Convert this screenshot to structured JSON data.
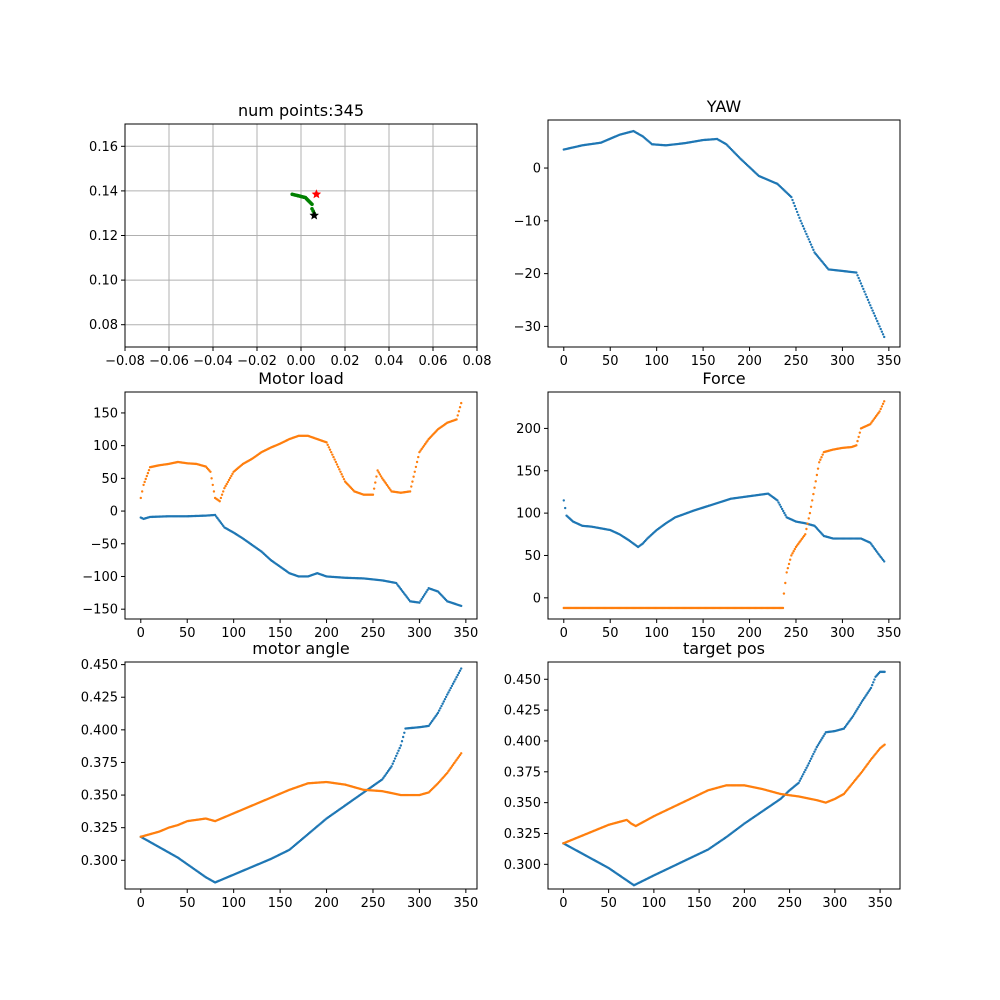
{
  "figure": {
    "description": "Six-panel matplotlib figure of robot motion telemetry"
  },
  "colors": {
    "series_0": "#1f77b4",
    "series_1": "#ff7f0e",
    "path": "#008000",
    "start_marker": "#ff0000",
    "end_marker": "#000000"
  },
  "chart_data": [
    {
      "id": "trajectory",
      "type": "scatter",
      "title": "num points:345",
      "xlim": [
        -0.08,
        0.08
      ],
      "ylim": [
        0.07,
        0.17
      ],
      "xticks": [
        "−0.08",
        "−0.06",
        "−0.04",
        "−0.02",
        "0.00",
        "0.02",
        "0.04",
        "0.06",
        "0.08"
      ],
      "xtick_values": [
        -0.08,
        -0.06,
        -0.04,
        -0.02,
        0.0,
        0.02,
        0.04,
        0.06,
        0.08
      ],
      "yticks": [
        "0.08",
        "0.10",
        "0.12",
        "0.14",
        "0.16"
      ],
      "ytick_values": [
        0.08,
        0.1,
        0.12,
        0.14,
        0.16
      ],
      "grid": true,
      "path": {
        "name": "trajectory",
        "x": [
          -0.004,
          -0.002,
          0.0,
          0.002,
          0.003,
          0.004,
          0.005,
          0.005,
          0.006
        ],
        "y": [
          0.1385,
          0.138,
          0.1375,
          0.137,
          0.136,
          0.135,
          0.134,
          0.132,
          0.13
        ]
      },
      "start_marker": {
        "x": 0.007,
        "y": 0.1385
      },
      "end_marker": {
        "x": 0.006,
        "y": 0.129
      }
    },
    {
      "id": "yaw",
      "type": "scatter",
      "title": "YAW",
      "xlim": [
        -17,
        362
      ],
      "ylim": [
        -33.9,
        9.1
      ],
      "xticks": [
        "0",
        "50",
        "100",
        "150",
        "200",
        "250",
        "300",
        "350"
      ],
      "xtick_values": [
        0,
        50,
        100,
        150,
        200,
        250,
        300,
        350
      ],
      "yticks": [
        "−30",
        "−20",
        "−10",
        "0"
      ],
      "ytick_values": [
        -30,
        -20,
        -10,
        0
      ],
      "series": [
        {
          "name": "yaw",
          "x": [
            0,
            20,
            40,
            60,
            75,
            85,
            95,
            110,
            130,
            150,
            165,
            175,
            190,
            210,
            230,
            245,
            255,
            270,
            285,
            300,
            315,
            330,
            345
          ],
          "y": [
            3.5,
            4.3,
            4.8,
            6.3,
            7.0,
            6.0,
            4.5,
            4.3,
            4.7,
            5.3,
            5.5,
            4.5,
            1.8,
            -1.5,
            -3.0,
            -5.5,
            -10.0,
            -16.0,
            -19.2,
            -19.5,
            -19.8,
            -26.0,
            -32.0
          ]
        }
      ]
    },
    {
      "id": "motor_load",
      "type": "scatter",
      "title": "Motor load",
      "xlim": [
        -17,
        362
      ],
      "ylim": [
        -165,
        182
      ],
      "xticks": [
        "0",
        "50",
        "100",
        "150",
        "200",
        "250",
        "300",
        "350"
      ],
      "xtick_values": [
        0,
        50,
        100,
        150,
        200,
        250,
        300,
        350
      ],
      "yticks": [
        "−150",
        "−100",
        "−50",
        "0",
        "50",
        "100",
        "150"
      ],
      "ytick_values": [
        -150,
        -100,
        -50,
        0,
        50,
        100,
        150
      ],
      "series": [
        {
          "name": "load_0",
          "x": [
            0,
            3,
            10,
            30,
            50,
            70,
            80,
            90,
            100,
            110,
            120,
            130,
            140,
            150,
            160,
            170,
            180,
            190,
            200,
            220,
            240,
            260,
            275,
            290,
            300,
            310,
            320,
            330,
            345
          ],
          "y": [
            -10,
            -12,
            -9,
            -8,
            -8,
            -7,
            -6,
            -25,
            -33,
            -42,
            -52,
            -62,
            -75,
            -85,
            -95,
            -100,
            -100,
            -95,
            -100,
            -102,
            -103,
            -106,
            -110,
            -138,
            -140,
            -118,
            -123,
            -138,
            -145
          ]
        },
        {
          "name": "load_1",
          "x": [
            0,
            3,
            10,
            20,
            30,
            40,
            50,
            60,
            70,
            75,
            80,
            85,
            90,
            100,
            110,
            120,
            130,
            140,
            150,
            160,
            170,
            180,
            190,
            200,
            210,
            220,
            230,
            240,
            250,
            255,
            260,
            270,
            280,
            290,
            295,
            300,
            310,
            320,
            330,
            340,
            345
          ],
          "y": [
            20,
            40,
            67,
            70,
            72,
            75,
            73,
            72,
            68,
            60,
            20,
            15,
            35,
            60,
            72,
            80,
            90,
            97,
            103,
            110,
            115,
            115,
            110,
            105,
            75,
            45,
            30,
            25,
            25,
            62,
            50,
            30,
            28,
            30,
            60,
            90,
            110,
            125,
            135,
            140,
            165
          ]
        }
      ]
    },
    {
      "id": "force",
      "type": "scatter",
      "title": "Force",
      "xlim": [
        -17,
        362
      ],
      "ylim": [
        -25,
        243
      ],
      "xticks": [
        "0",
        "50",
        "100",
        "150",
        "200",
        "250",
        "300",
        "350"
      ],
      "xtick_values": [
        0,
        50,
        100,
        150,
        200,
        250,
        300,
        350
      ],
      "yticks": [
        "0",
        "50",
        "100",
        "150",
        "200"
      ],
      "ytick_values": [
        0,
        50,
        100,
        150,
        200
      ],
      "series": [
        {
          "name": "force_0",
          "x": [
            0,
            3,
            10,
            20,
            30,
            40,
            50,
            60,
            70,
            80,
            85,
            90,
            100,
            110,
            120,
            140,
            160,
            180,
            200,
            220,
            230,
            240,
            250,
            260,
            270,
            280,
            290,
            300,
            320,
            330,
            340,
            345
          ],
          "y": [
            115,
            97,
            90,
            85,
            84,
            82,
            80,
            75,
            68,
            60,
            64,
            70,
            80,
            88,
            95,
            103,
            110,
            117,
            120,
            123,
            115,
            95,
            90,
            88,
            85,
            73,
            70,
            70,
            70,
            65,
            50,
            43
          ]
        },
        {
          "name": "force_1",
          "x": [
            0,
            50,
            100,
            150,
            200,
            236,
            237,
            240,
            245,
            250,
            260,
            265,
            270,
            275,
            280,
            290,
            300,
            310,
            315,
            320,
            330,
            340,
            345
          ],
          "y": [
            -12,
            -12,
            -12,
            -12,
            -12,
            -12,
            5,
            30,
            50,
            60,
            75,
            100,
            130,
            160,
            172,
            175,
            177,
            178,
            180,
            200,
            205,
            220,
            232
          ]
        }
      ]
    },
    {
      "id": "motor_angle",
      "type": "scatter",
      "title": "motor angle",
      "xlim": [
        -17,
        362
      ],
      "ylim": [
        0.278,
        0.452
      ],
      "xticks": [
        "0",
        "50",
        "100",
        "150",
        "200",
        "250",
        "300",
        "350"
      ],
      "xtick_values": [
        0,
        50,
        100,
        150,
        200,
        250,
        300,
        350
      ],
      "yticks": [
        "0.300",
        "0.325",
        "0.350",
        "0.375",
        "0.400",
        "0.425",
        "0.450"
      ],
      "ytick_values": [
        0.3,
        0.325,
        0.35,
        0.375,
        0.4,
        0.425,
        0.45
      ],
      "series": [
        {
          "name": "angle_0",
          "x": [
            0,
            10,
            20,
            30,
            40,
            50,
            60,
            70,
            80,
            100,
            120,
            140,
            160,
            180,
            200,
            220,
            240,
            250,
            260,
            270,
            280,
            285,
            300,
            310,
            320,
            330,
            345
          ],
          "y": [
            0.318,
            0.314,
            0.31,
            0.306,
            0.302,
            0.297,
            0.292,
            0.287,
            0.283,
            0.289,
            0.295,
            0.301,
            0.308,
            0.32,
            0.332,
            0.342,
            0.352,
            0.357,
            0.362,
            0.372,
            0.388,
            0.401,
            0.402,
            0.403,
            0.413,
            0.427,
            0.447
          ]
        },
        {
          "name": "angle_1",
          "x": [
            0,
            10,
            20,
            30,
            40,
            50,
            60,
            70,
            75,
            80,
            90,
            100,
            120,
            140,
            160,
            180,
            200,
            220,
            240,
            260,
            280,
            290,
            300,
            310,
            320,
            330,
            345
          ],
          "y": [
            0.318,
            0.32,
            0.322,
            0.325,
            0.327,
            0.33,
            0.331,
            0.332,
            0.331,
            0.33,
            0.333,
            0.336,
            0.342,
            0.348,
            0.354,
            0.359,
            0.36,
            0.358,
            0.354,
            0.353,
            0.35,
            0.35,
            0.35,
            0.352,
            0.359,
            0.367,
            0.382
          ]
        }
      ]
    },
    {
      "id": "target_pos",
      "type": "scatter",
      "title": "target pos",
      "xlim": [
        -17,
        372
      ],
      "ylim": [
        0.28,
        0.464
      ],
      "xticks": [
        "0",
        "50",
        "100",
        "150",
        "200",
        "250",
        "300",
        "350"
      ],
      "xtick_values": [
        0,
        50,
        100,
        150,
        200,
        250,
        300,
        350
      ],
      "yticks": [
        "0.300",
        "0.325",
        "0.350",
        "0.375",
        "0.400",
        "0.425",
        "0.450"
      ],
      "ytick_values": [
        0.3,
        0.325,
        0.35,
        0.375,
        0.4,
        0.425,
        0.45
      ],
      "series": [
        {
          "name": "target_0",
          "x": [
            0,
            10,
            20,
            30,
            40,
            50,
            60,
            70,
            78,
            100,
            120,
            140,
            160,
            180,
            200,
            220,
            240,
            250,
            260,
            270,
            280,
            290,
            300,
            310,
            320,
            330,
            340,
            345,
            350,
            355
          ],
          "y": [
            0.317,
            0.313,
            0.309,
            0.305,
            0.301,
            0.297,
            0.292,
            0.287,
            0.283,
            0.291,
            0.298,
            0.305,
            0.312,
            0.322,
            0.333,
            0.343,
            0.353,
            0.36,
            0.366,
            0.38,
            0.395,
            0.407,
            0.408,
            0.41,
            0.42,
            0.432,
            0.443,
            0.452,
            0.456,
            0.456
          ]
        },
        {
          "name": "target_1",
          "x": [
            0,
            10,
            20,
            30,
            40,
            50,
            60,
            70,
            75,
            80,
            90,
            100,
            120,
            140,
            160,
            180,
            200,
            220,
            240,
            260,
            280,
            290,
            300,
            310,
            320,
            330,
            340,
            350,
            355
          ],
          "y": [
            0.317,
            0.32,
            0.323,
            0.326,
            0.329,
            0.332,
            0.334,
            0.336,
            0.333,
            0.331,
            0.335,
            0.339,
            0.346,
            0.353,
            0.36,
            0.364,
            0.364,
            0.361,
            0.357,
            0.355,
            0.352,
            0.35,
            0.353,
            0.357,
            0.366,
            0.375,
            0.385,
            0.394,
            0.397
          ]
        }
      ]
    }
  ]
}
